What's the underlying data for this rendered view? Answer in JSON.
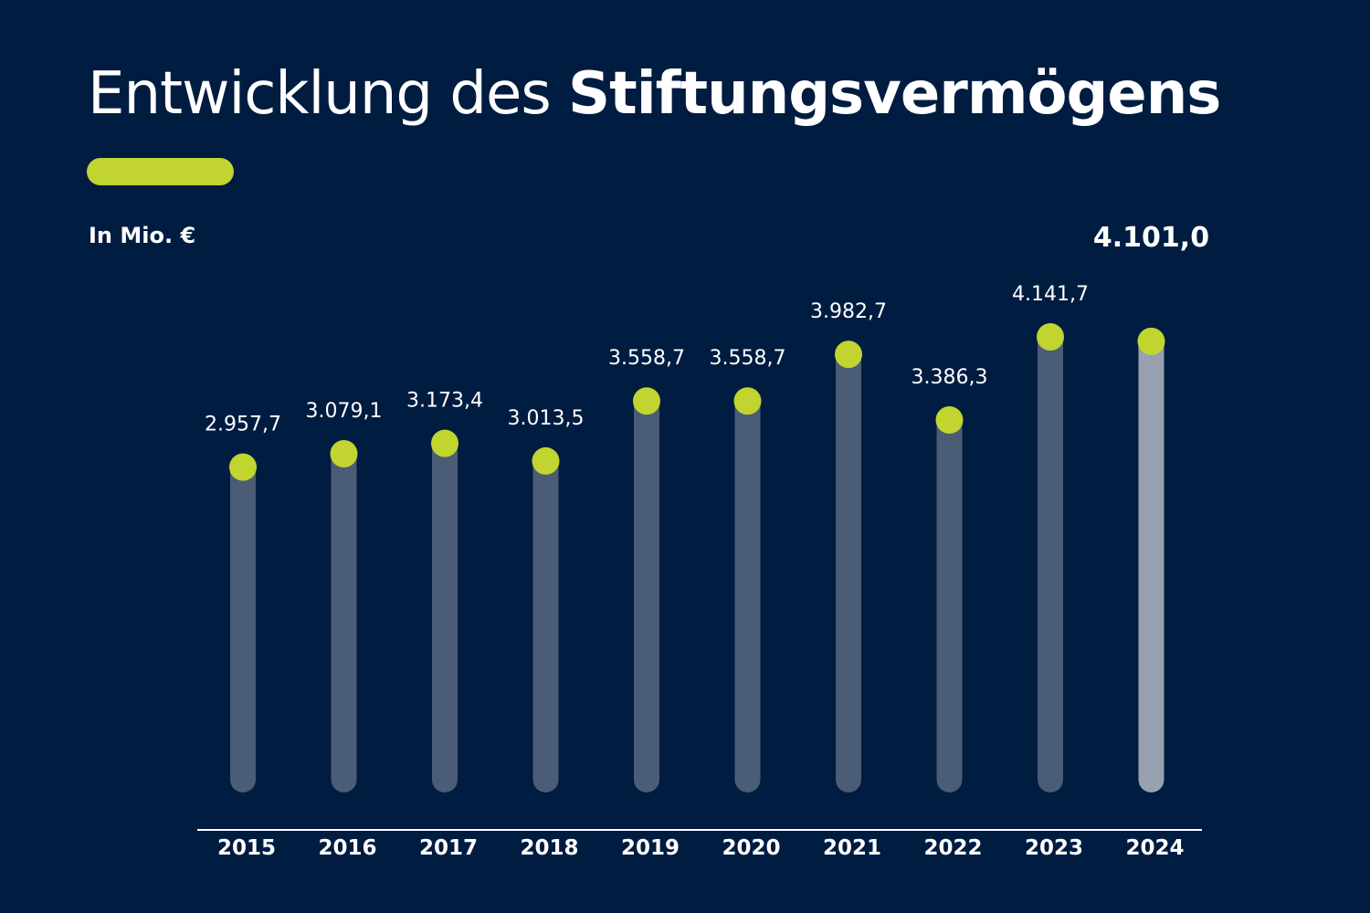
{
  "header": {
    "title_regular": "Entwicklung des",
    "title_bold": "Stiftungsvermögens",
    "unit_label": "In Mio. €"
  },
  "colors": {
    "background": "#001c40",
    "accent": "#c1d42f",
    "bar": "#4b5c76",
    "bar_highlight": "#97a1b1",
    "text": "#ffffff"
  },
  "chart_data": {
    "type": "bar",
    "title": "Entwicklung des Stiftungsvermögens",
    "ylabel": "In Mio. €",
    "xlabel": "",
    "ylim": [
      0,
      4141.7
    ],
    "grid": false,
    "categories": [
      "2015",
      "2016",
      "2017",
      "2018",
      "2019",
      "2020",
      "2021",
      "2022",
      "2023",
      "2024"
    ],
    "values": [
      2957.7,
      3079.1,
      3173.4,
      3013.5,
      3558.7,
      3558.7,
      3982.7,
      3386.3,
      4141.7,
      4101.0
    ],
    "value_labels": [
      "2.957,7",
      "3.079,1",
      "3.173,4",
      "3.013,5",
      "3.558,7",
      "3.558,7",
      "3.982,7",
      "3.386,3",
      "4.141,7",
      "4.101,0"
    ],
    "highlight_index": 9
  }
}
